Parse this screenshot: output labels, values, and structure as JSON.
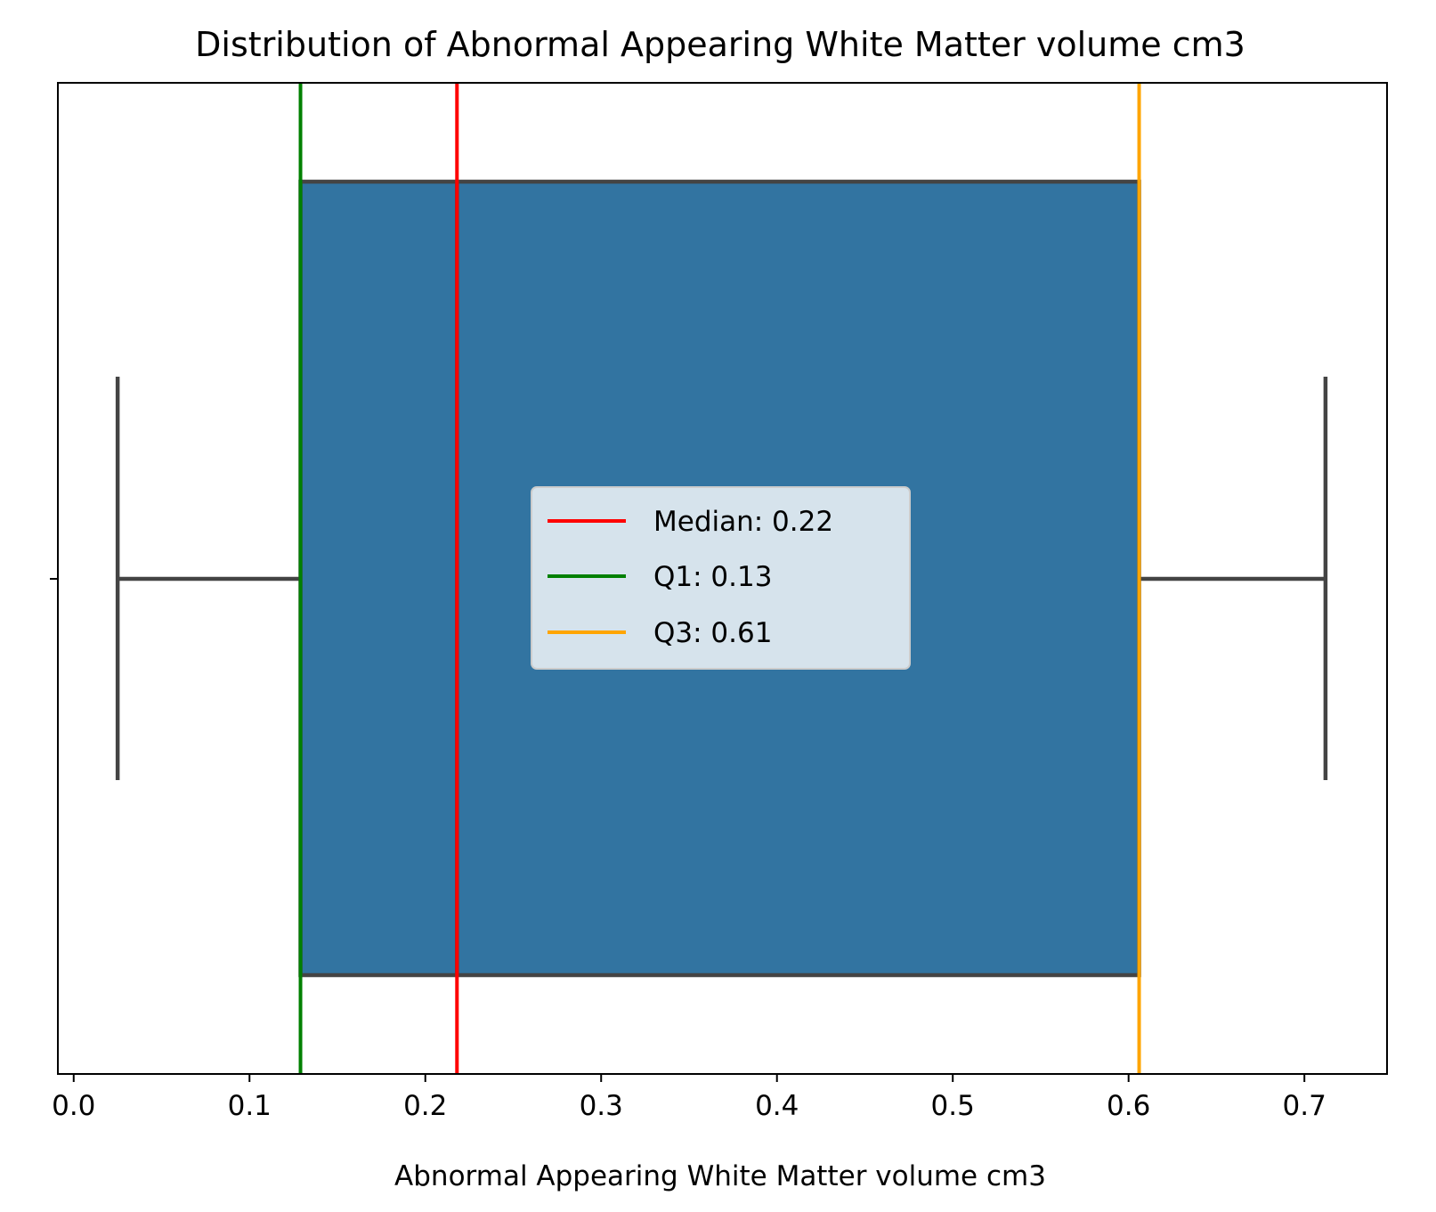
{
  "chart_data": {
    "type": "box",
    "title": "Distribution of Abnormal Appearing White Matter volume cm3",
    "xlabel": "Abnormal Appearing White Matter volume cm3",
    "ylabel": "",
    "xlim": [
      -0.009,
      0.747
    ],
    "x_ticks": [
      0.0,
      0.1,
      0.2,
      0.3,
      0.4,
      0.5,
      0.6,
      0.7
    ],
    "x_tick_labels": [
      "0.0",
      "0.1",
      "0.2",
      "0.3",
      "0.4",
      "0.5",
      "0.6",
      "0.7"
    ],
    "y_ticks": [
      ""
    ],
    "box": {
      "whisker_low": 0.025,
      "q1": 0.129,
      "median": 0.218,
      "q3": 0.606,
      "whisker_high": 0.712,
      "fill": "#3274a1",
      "edge": "#444444"
    },
    "reference_lines": [
      {
        "label": "Median: 0.22",
        "value": 0.218,
        "color": "#ff0000"
      },
      {
        "label": "Q1: 0.13",
        "value": 0.129,
        "color": "#008000"
      },
      {
        "label": "Q3: 0.61",
        "value": 0.606,
        "color": "#ffa500"
      }
    ],
    "legend": {
      "position": "center"
    },
    "grid": false
  }
}
